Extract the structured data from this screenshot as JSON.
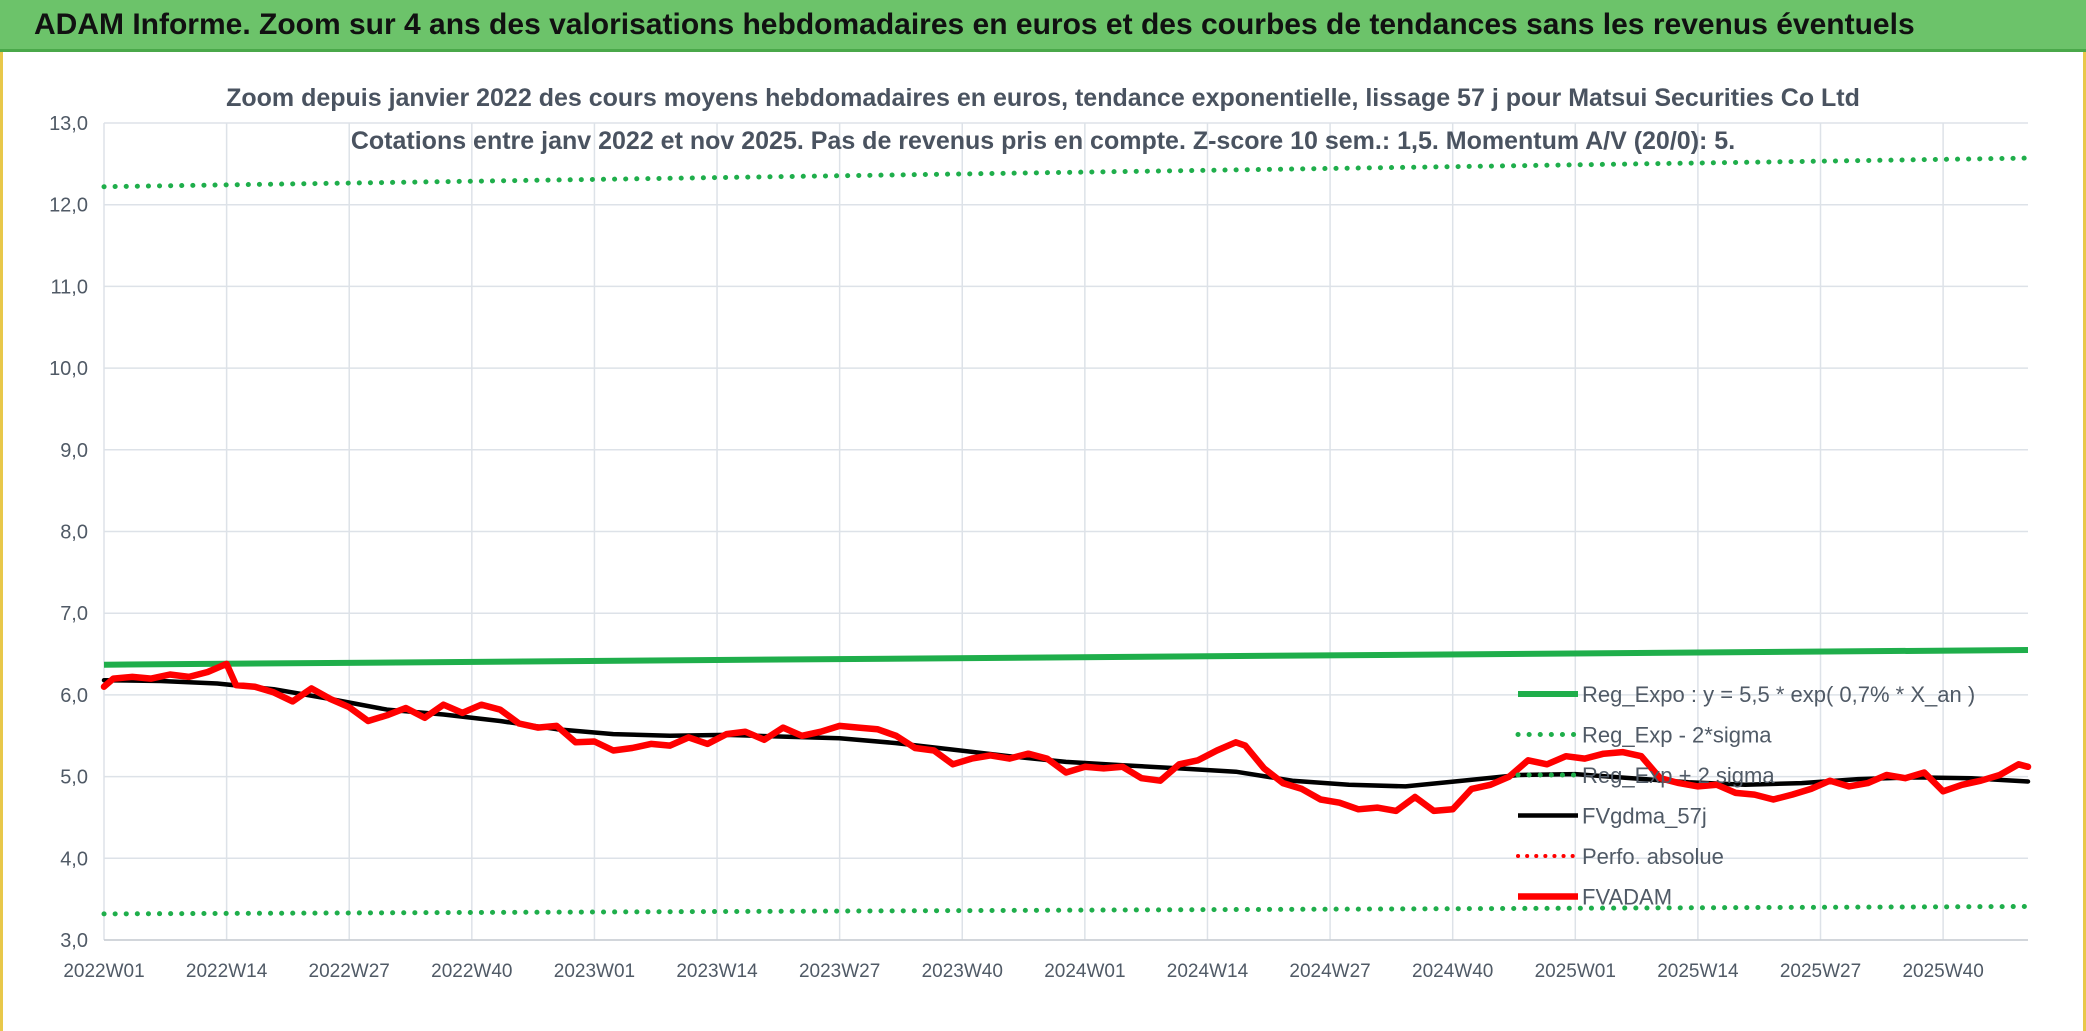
{
  "header": {
    "banner_title": "ADAM Informe. Zoom sur 4 ans des valorisations hebdomadaires en euros et des courbes de tendances sans les revenus éventuels"
  },
  "colors": {
    "banner_bg": "#6cc36a",
    "reg_expo": "#1fae4b",
    "sigma_bands": "#1fae4b",
    "fvgdma": "#000000",
    "perfo": "#ff0000",
    "fvadam": "#ff0000",
    "grid": "#dde2e8"
  },
  "chart_data": {
    "type": "line",
    "title": "Zoom depuis janvier 2022 des cours moyens hebdomadaires en euros, tendance exponentielle, lissage 57 j pour Matsui Securities Co Ltd",
    "subtitle": "Cotations entre janv 2022 et nov 2025. Pas de revenus pris en compte. Z-score 10 sem.: 1,5. Momentum A/V (20/0): 5.",
    "xlabel": "",
    "ylabel": "",
    "ylim": [
      3.0,
      13.0
    ],
    "y_ticks": [
      "13,0",
      "12,0",
      "11,0",
      "10,0",
      "9,0",
      "8,0",
      "7,0",
      "6,0",
      "5,0",
      "4,0",
      "3,0"
    ],
    "x_ticks": [
      "2022W01",
      "2022W14",
      "2022W27",
      "2022W40",
      "2023W01",
      "2023W14",
      "2023W27",
      "2023W40",
      "2024W01",
      "2024W14",
      "2024W27",
      "2024W40",
      "2025W01",
      "2025W14",
      "2025W27",
      "2025W40"
    ],
    "x_weeks_total": 204,
    "grid": true,
    "legend_position": "bottom-right",
    "series": [
      {
        "name": "Reg_Expo : y = 5,5 * exp( 0,7% *  X_an )",
        "style": "solid-thick",
        "points": [
          [
            0,
            6.37
          ],
          [
            204,
            6.55
          ]
        ]
      },
      {
        "name": "Reg_Exp - 2*sigma",
        "style": "dotted",
        "points": [
          [
            0,
            3.32
          ],
          [
            204,
            3.41
          ]
        ]
      },
      {
        "name": "Reg_Exp + 2 sigma",
        "style": "dotted",
        "points": [
          [
            0,
            12.22
          ],
          [
            204,
            12.57
          ]
        ]
      },
      {
        "name": "FVgdma_57j",
        "style": "solid-black",
        "points": [
          [
            0,
            6.18
          ],
          [
            6,
            6.17
          ],
          [
            12,
            6.14
          ],
          [
            18,
            6.07
          ],
          [
            24,
            5.95
          ],
          [
            30,
            5.82
          ],
          [
            36,
            5.76
          ],
          [
            42,
            5.68
          ],
          [
            48,
            5.58
          ],
          [
            54,
            5.52
          ],
          [
            60,
            5.5
          ],
          [
            66,
            5.51
          ],
          [
            72,
            5.49
          ],
          [
            78,
            5.47
          ],
          [
            84,
            5.41
          ],
          [
            90,
            5.33
          ],
          [
            96,
            5.25
          ],
          [
            102,
            5.18
          ],
          [
            108,
            5.14
          ],
          [
            114,
            5.1
          ],
          [
            120,
            5.06
          ],
          [
            126,
            4.95
          ],
          [
            132,
            4.9
          ],
          [
            138,
            4.88
          ],
          [
            144,
            4.95
          ],
          [
            150,
            5.02
          ],
          [
            156,
            5.03
          ],
          [
            162,
            4.98
          ],
          [
            168,
            4.93
          ],
          [
            174,
            4.9
          ],
          [
            180,
            4.92
          ],
          [
            186,
            4.97
          ],
          [
            192,
            4.99
          ],
          [
            198,
            4.98
          ],
          [
            204,
            4.94
          ]
        ]
      },
      {
        "name": "Perfo. absolue",
        "style": "dotted-red",
        "points": []
      },
      {
        "name": "FVADAM",
        "style": "solid-red-thick",
        "points": [
          [
            0,
            6.1
          ],
          [
            1,
            6.2
          ],
          [
            3,
            6.22
          ],
          [
            5,
            6.2
          ],
          [
            7,
            6.25
          ],
          [
            9,
            6.22
          ],
          [
            11,
            6.28
          ],
          [
            13,
            6.38
          ],
          [
            14,
            6.12
          ],
          [
            16,
            6.1
          ],
          [
            18,
            6.03
          ],
          [
            20,
            5.92
          ],
          [
            22,
            6.08
          ],
          [
            24,
            5.95
          ],
          [
            26,
            5.85
          ],
          [
            28,
            5.68
          ],
          [
            30,
            5.75
          ],
          [
            32,
            5.84
          ],
          [
            34,
            5.72
          ],
          [
            36,
            5.88
          ],
          [
            38,
            5.78
          ],
          [
            40,
            5.88
          ],
          [
            42,
            5.82
          ],
          [
            44,
            5.65
          ],
          [
            46,
            5.6
          ],
          [
            48,
            5.62
          ],
          [
            50,
            5.42
          ],
          [
            52,
            5.43
          ],
          [
            54,
            5.32
          ],
          [
            56,
            5.35
          ],
          [
            58,
            5.4
          ],
          [
            60,
            5.38
          ],
          [
            62,
            5.48
          ],
          [
            64,
            5.4
          ],
          [
            66,
            5.52
          ],
          [
            68,
            5.55
          ],
          [
            70,
            5.45
          ],
          [
            72,
            5.6
          ],
          [
            74,
            5.5
          ],
          [
            76,
            5.55
          ],
          [
            78,
            5.62
          ],
          [
            80,
            5.6
          ],
          [
            82,
            5.58
          ],
          [
            84,
            5.5
          ],
          [
            86,
            5.35
          ],
          [
            88,
            5.32
          ],
          [
            90,
            5.15
          ],
          [
            92,
            5.22
          ],
          [
            94,
            5.26
          ],
          [
            96,
            5.22
          ],
          [
            98,
            5.28
          ],
          [
            100,
            5.22
          ],
          [
            102,
            5.05
          ],
          [
            104,
            5.12
          ],
          [
            106,
            5.1
          ],
          [
            108,
            5.12
          ],
          [
            110,
            4.98
          ],
          [
            112,
            4.95
          ],
          [
            114,
            5.15
          ],
          [
            116,
            5.2
          ],
          [
            118,
            5.32
          ],
          [
            120,
            5.42
          ],
          [
            121,
            5.38
          ],
          [
            123,
            5.1
          ],
          [
            125,
            4.92
          ],
          [
            127,
            4.85
          ],
          [
            129,
            4.72
          ],
          [
            131,
            4.68
          ],
          [
            133,
            4.6
          ],
          [
            135,
            4.62
          ],
          [
            137,
            4.58
          ],
          [
            139,
            4.75
          ],
          [
            141,
            4.58
          ],
          [
            143,
            4.6
          ],
          [
            145,
            4.85
          ],
          [
            147,
            4.9
          ],
          [
            149,
            5.0
          ],
          [
            151,
            5.2
          ],
          [
            153,
            5.15
          ],
          [
            155,
            5.25
          ],
          [
            157,
            5.22
          ],
          [
            159,
            5.28
          ],
          [
            161,
            5.3
          ],
          [
            163,
            5.25
          ],
          [
            165,
            4.98
          ],
          [
            167,
            4.92
          ],
          [
            169,
            4.88
          ],
          [
            171,
            4.9
          ],
          [
            173,
            4.8
          ],
          [
            175,
            4.78
          ],
          [
            177,
            4.72
          ],
          [
            179,
            4.78
          ],
          [
            181,
            4.85
          ],
          [
            183,
            4.95
          ],
          [
            185,
            4.88
          ],
          [
            187,
            4.92
          ],
          [
            189,
            5.02
          ],
          [
            191,
            4.98
          ],
          [
            193,
            5.05
          ],
          [
            195,
            4.82
          ],
          [
            197,
            4.9
          ],
          [
            199,
            4.95
          ],
          [
            201,
            5.02
          ],
          [
            203,
            5.15
          ],
          [
            204,
            5.12
          ]
        ]
      }
    ]
  },
  "legend": [
    {
      "label": "Reg_Expo : y = 5,5 * exp( 0,7% *  X_an )",
      "style": "solid-thick-green"
    },
    {
      "label": "Reg_Exp - 2*sigma",
      "style": "dotted-green"
    },
    {
      "label": "Reg_Exp + 2 sigma",
      "style": "dotted-green"
    },
    {
      "label": "FVgdma_57j",
      "style": "solid-black"
    },
    {
      "label": "Perfo. absolue",
      "style": "dotted-red"
    },
    {
      "label": "FVADAM",
      "style": "solid-red-thick"
    }
  ]
}
